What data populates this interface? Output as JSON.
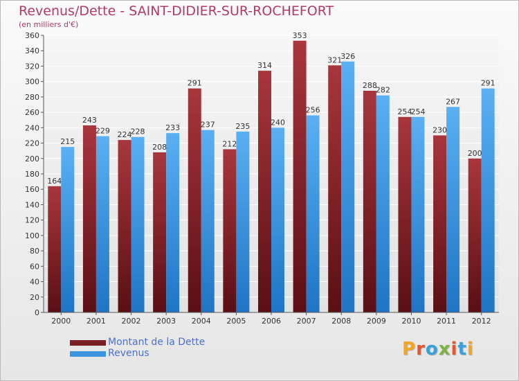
{
  "header": {
    "title": "Revenus/Dette - SAINT-DIDIER-SUR-ROCHEFORT",
    "subtitle": "(en milliers d'€)"
  },
  "brand": {
    "text": "Proxiti",
    "letters": [
      "P",
      "r",
      "o",
      "x",
      "i",
      "t",
      "i"
    ],
    "colors": [
      "#f4a623",
      "#e8542c",
      "#3aa0d8",
      "#7cb342",
      "#e8542c",
      "#3aa0d8",
      "#f4a623"
    ]
  },
  "legend": {
    "items": [
      {
        "label": "Montant de la Dette",
        "color": "#7a1f24"
      },
      {
        "label": "Revenus",
        "color": "#3d95df"
      }
    ]
  },
  "chart_data": {
    "type": "bar",
    "title": "Revenus/Dette - SAINT-DIDIER-SUR-ROCHEFORT",
    "subtitle": "(en milliers d'€)",
    "xlabel": "",
    "ylabel": "",
    "ylim": [
      0,
      360
    ],
    "ytick_step": 20,
    "grid": true,
    "legend_position": "bottom-left",
    "categories": [
      "2000",
      "2001",
      "2002",
      "2003",
      "2004",
      "2005",
      "2006",
      "2007",
      "2008",
      "2009",
      "2010",
      "2011",
      "2012"
    ],
    "series": [
      {
        "name": "Montant de la Dette",
        "color": "#7a1f24",
        "color_light": "#a8363d",
        "values": [
          164,
          243,
          224,
          208,
          291,
          212,
          314,
          353,
          321,
          288,
          254,
          230,
          200
        ]
      },
      {
        "name": "Revenus",
        "color": "#3d95df",
        "color_light": "#5ab0f2",
        "values": [
          215,
          229,
          228,
          233,
          237,
          235,
          240,
          256,
          326,
          282,
          254,
          267,
          291
        ]
      }
    ]
  }
}
